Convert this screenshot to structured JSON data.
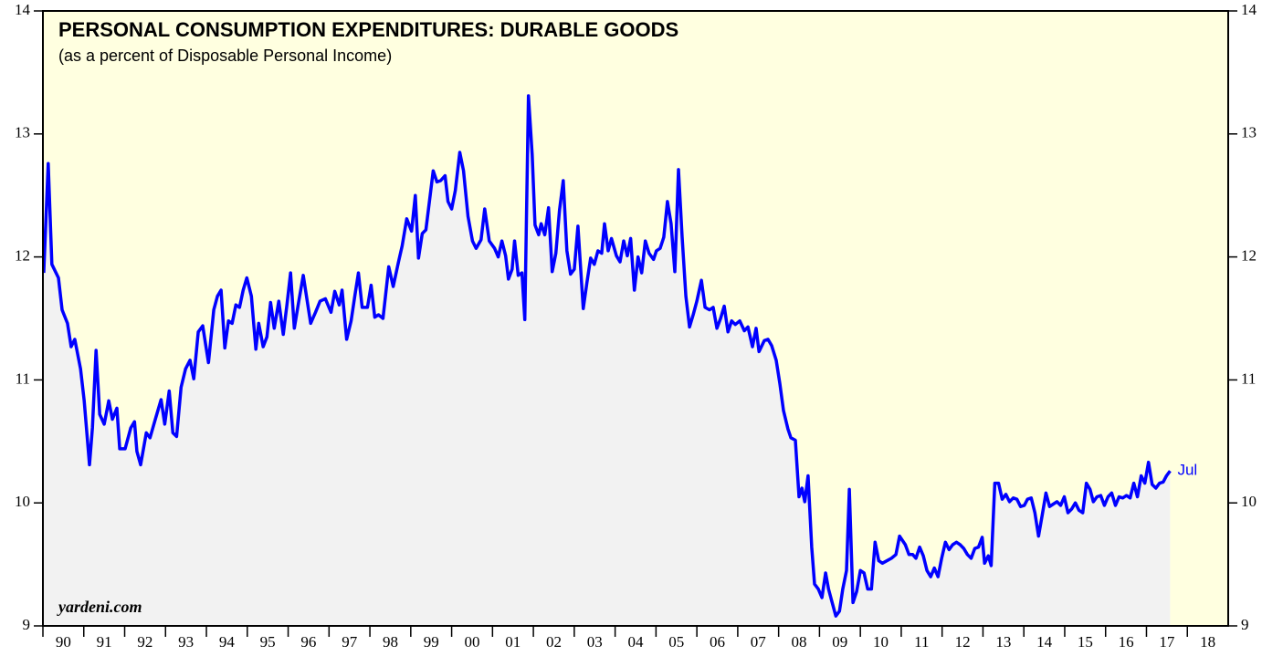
{
  "chart_data": {
    "type": "line",
    "title": "PERSONAL CONSUMPTION EXPENDITURES: DURABLE GOODS",
    "subtitle": "(as a percent of Disposable Personal Income)",
    "annotations": {
      "source": "yardeni.com",
      "last": "Jul"
    },
    "background": "#ffffe0",
    "area_color": "#f2f2f2",
    "xlim": [
      1990,
      2019
    ],
    "ylim": [
      9,
      14
    ],
    "yticks": [
      9,
      10,
      11,
      12,
      13,
      14
    ],
    "xticks": [
      {
        "value": 1990.5,
        "label": "90"
      },
      {
        "value": 1991.5,
        "label": "91"
      },
      {
        "value": 1992.5,
        "label": "92"
      },
      {
        "value": 1993.5,
        "label": "93"
      },
      {
        "value": 1994.5,
        "label": "94"
      },
      {
        "value": 1995.5,
        "label": "95"
      },
      {
        "value": 1996.5,
        "label": "96"
      },
      {
        "value": 1997.5,
        "label": "97"
      },
      {
        "value": 1998.5,
        "label": "98"
      },
      {
        "value": 1999.5,
        "label": "99"
      },
      {
        "value": 2000.5,
        "label": "00"
      },
      {
        "value": 2001.5,
        "label": "01"
      },
      {
        "value": 2002.5,
        "label": "02"
      },
      {
        "value": 2003.5,
        "label": "03"
      },
      {
        "value": 2004.5,
        "label": "04"
      },
      {
        "value": 2005.5,
        "label": "05"
      },
      {
        "value": 2006.5,
        "label": "06"
      },
      {
        "value": 2007.5,
        "label": "07"
      },
      {
        "value": 2008.5,
        "label": "08"
      },
      {
        "value": 2009.5,
        "label": "09"
      },
      {
        "value": 2010.5,
        "label": "10"
      },
      {
        "value": 2011.5,
        "label": "11"
      },
      {
        "value": 2012.5,
        "label": "12"
      },
      {
        "value": 2013.5,
        "label": "13"
      },
      {
        "value": 2014.5,
        "label": "14"
      },
      {
        "value": 2015.5,
        "label": "15"
      },
      {
        "value": 2016.5,
        "label": "16"
      },
      {
        "value": 2017.5,
        "label": "17"
      },
      {
        "value": 2018.5,
        "label": "18"
      }
    ],
    "x": [
      1990.02,
      1990.13,
      1990.22,
      1990.38,
      1990.47,
      1990.6,
      1990.69,
      1990.78,
      1990.92,
      1991.01,
      1991.14,
      1991.21,
      1991.3,
      1991.39,
      1991.5,
      1991.61,
      1991.7,
      1991.81,
      1991.88,
      1992.01,
      1992.15,
      1992.24,
      1992.3,
      1992.39,
      1992.53,
      1992.62,
      1992.75,
      1992.89,
      1992.98,
      1993.09,
      1993.18,
      1993.27,
      1993.38,
      1993.49,
      1993.6,
      1993.69,
      1993.8,
      1993.91,
      1994.05,
      1994.18,
      1994.27,
      1994.36,
      1994.45,
      1994.54,
      1994.63,
      1994.72,
      1994.81,
      1994.9,
      1994.99,
      1995.1,
      1995.21,
      1995.28,
      1995.39,
      1995.48,
      1995.57,
      1995.66,
      1995.77,
      1995.88,
      1995.97,
      1996.06,
      1996.15,
      1996.26,
      1996.37,
      1996.55,
      1996.67,
      1996.78,
      1996.91,
      1997.05,
      1997.14,
      1997.25,
      1997.32,
      1997.43,
      1997.54,
      1997.63,
      1997.72,
      1997.81,
      1997.94,
      1998.03,
      1998.12,
      1998.21,
      1998.32,
      1998.46,
      1998.57,
      1998.7,
      1998.79,
      1998.9,
      1999.02,
      1999.11,
      1999.19,
      1999.28,
      1999.37,
      1999.46,
      1999.55,
      1999.64,
      1999.73,
      1999.84,
      1999.91,
      2000.0,
      2000.09,
      2000.2,
      2000.29,
      2000.4,
      2000.51,
      2000.6,
      2000.72,
      2000.81,
      2000.92,
      2001.05,
      2001.14,
      2001.23,
      2001.32,
      2001.39,
      2001.48,
      2001.54,
      2001.63,
      2001.72,
      2001.79,
      2001.88,
      2001.97,
      2002.04,
      2002.13,
      2002.19,
      2002.28,
      2002.37,
      2002.46,
      2002.55,
      2002.64,
      2002.73,
      2002.82,
      2002.91,
      2003.0,
      2003.09,
      2003.22,
      2003.31,
      2003.4,
      2003.49,
      2003.58,
      2003.67,
      2003.74,
      2003.83,
      2003.91,
      2004.03,
      2004.12,
      2004.21,
      2004.3,
      2004.38,
      2004.47,
      2004.56,
      2004.65,
      2004.74,
      2004.83,
      2004.94,
      2005.01,
      2005.1,
      2005.19,
      2005.28,
      2005.37,
      2005.46,
      2005.55,
      2005.64,
      2005.73,
      2005.82,
      2005.91,
      2006.0,
      2006.11,
      2006.2,
      2006.31,
      2006.4,
      2006.49,
      2006.58,
      2006.67,
      2006.76,
      2006.85,
      2006.94,
      2007.05,
      2007.16,
      2007.25,
      2007.36,
      2007.45,
      2007.52,
      2007.65,
      2007.74,
      2007.83,
      2007.94,
      2008.03,
      2008.12,
      2008.23,
      2008.3,
      2008.41,
      2008.5,
      2008.57,
      2008.64,
      2008.72,
      2008.81,
      2008.88,
      2008.97,
      2009.06,
      2009.15,
      2009.22,
      2009.31,
      2009.4,
      2009.49,
      2009.57,
      2009.66,
      2009.73,
      2009.82,
      2009.91,
      2010.0,
      2010.09,
      2010.18,
      2010.27,
      2010.36,
      2010.45,
      2010.54,
      2010.65,
      2010.76,
      2010.87,
      2010.96,
      2011.1,
      2011.19,
      2011.28,
      2011.36,
      2011.45,
      2011.54,
      2011.63,
      2011.72,
      2011.81,
      2011.9,
      2011.99,
      2012.08,
      2012.17,
      2012.26,
      2012.35,
      2012.44,
      2012.53,
      2012.62,
      2012.71,
      2012.8,
      2012.89,
      2012.98,
      2013.04,
      2013.13,
      2013.2,
      2013.29,
      2013.38,
      2013.47,
      2013.56,
      2013.65,
      2013.74,
      2013.83,
      2013.92,
      2014.01,
      2014.09,
      2014.18,
      2014.27,
      2014.36,
      2014.45,
      2014.54,
      2014.63,
      2014.72,
      2014.81,
      2014.9,
      2014.99,
      2015.08,
      2015.17,
      2015.26,
      2015.35,
      2015.44,
      2015.53,
      2015.62,
      2015.7,
      2015.79,
      2015.88,
      2015.97,
      2016.06,
      2016.15,
      2016.24,
      2016.33,
      2016.42,
      2016.51,
      2016.6,
      2016.69,
      2016.78,
      2016.87,
      2016.96,
      2017.05,
      2017.14,
      2017.23,
      2017.32,
      2017.41,
      2017.49,
      2017.58
    ],
    "series": [
      {
        "color": "#0000ff",
        "values": [
          11.87,
          12.76,
          11.94,
          11.83,
          11.57,
          11.46,
          11.27,
          11.33,
          11.09,
          10.83,
          10.31,
          10.61,
          11.24,
          10.72,
          10.64,
          10.83,
          10.68,
          10.77,
          10.44,
          10.44,
          10.61,
          10.66,
          10.42,
          10.31,
          10.57,
          10.53,
          10.68,
          10.84,
          10.64,
          10.91,
          10.57,
          10.54,
          10.94,
          11.09,
          11.16,
          11.01,
          11.39,
          11.44,
          11.14,
          11.57,
          11.68,
          11.73,
          11.26,
          11.48,
          11.46,
          11.61,
          11.59,
          11.73,
          11.83,
          11.68,
          11.25,
          11.46,
          11.27,
          11.35,
          11.63,
          11.42,
          11.64,
          11.37,
          11.61,
          11.87,
          11.42,
          11.64,
          11.85,
          11.46,
          11.55,
          11.64,
          11.66,
          11.55,
          11.72,
          11.61,
          11.73,
          11.33,
          11.48,
          11.68,
          11.87,
          11.59,
          11.59,
          11.77,
          11.51,
          11.53,
          11.5,
          11.92,
          11.76,
          11.96,
          12.09,
          12.31,
          12.21,
          12.5,
          11.99,
          12.19,
          12.22,
          12.46,
          12.7,
          12.61,
          12.62,
          12.66,
          12.45,
          12.39,
          12.54,
          12.85,
          12.7,
          12.33,
          12.13,
          12.07,
          12.14,
          12.39,
          12.13,
          12.07,
          12.0,
          12.13,
          12.01,
          11.82,
          11.9,
          12.13,
          11.85,
          11.87,
          11.49,
          13.31,
          12.83,
          12.26,
          12.18,
          12.27,
          12.18,
          12.4,
          11.88,
          12.03,
          12.38,
          12.62,
          12.05,
          11.86,
          11.9,
          12.25,
          11.58,
          11.79,
          11.99,
          11.94,
          12.05,
          12.03,
          12.27,
          12.05,
          12.15,
          12.01,
          11.96,
          12.13,
          12.01,
          12.15,
          11.73,
          12.0,
          11.87,
          12.13,
          12.03,
          11.98,
          12.05,
          12.07,
          12.16,
          12.45,
          12.27,
          11.88,
          12.71,
          12.16,
          11.68,
          11.43,
          11.53,
          11.64,
          11.81,
          11.59,
          11.57,
          11.59,
          11.42,
          11.5,
          11.6,
          11.39,
          11.48,
          11.45,
          11.48,
          11.4,
          11.43,
          11.27,
          11.42,
          11.23,
          11.32,
          11.33,
          11.28,
          11.16,
          10.97,
          10.75,
          10.6,
          10.53,
          10.51,
          10.05,
          10.12,
          10.01,
          10.22,
          9.64,
          9.34,
          9.3,
          9.23,
          9.43,
          9.3,
          9.19,
          9.08,
          9.12,
          9.3,
          9.45,
          10.11,
          9.19,
          9.28,
          9.45,
          9.43,
          9.3,
          9.3,
          9.68,
          9.53,
          9.51,
          9.53,
          9.55,
          9.58,
          9.73,
          9.66,
          9.58,
          9.58,
          9.55,
          9.64,
          9.57,
          9.45,
          9.4,
          9.47,
          9.4,
          9.55,
          9.68,
          9.62,
          9.66,
          9.68,
          9.66,
          9.63,
          9.58,
          9.55,
          9.63,
          9.64,
          9.72,
          9.51,
          9.57,
          9.49,
          10.16,
          10.16,
          10.03,
          10.07,
          10.01,
          10.04,
          10.03,
          9.97,
          9.98,
          10.03,
          10.04,
          9.92,
          9.73,
          9.9,
          10.08,
          9.97,
          9.99,
          10.01,
          9.98,
          10.05,
          9.92,
          9.95,
          10.0,
          9.94,
          9.92,
          10.16,
          10.11,
          10.01,
          10.05,
          10.06,
          9.98,
          10.05,
          10.08,
          9.98,
          10.05,
          10.04,
          10.06,
          10.04,
          10.16,
          10.05,
          10.22,
          10.16,
          10.33,
          10.15,
          10.12,
          10.16,
          10.17,
          10.22,
          10.26
        ]
      }
    ]
  }
}
